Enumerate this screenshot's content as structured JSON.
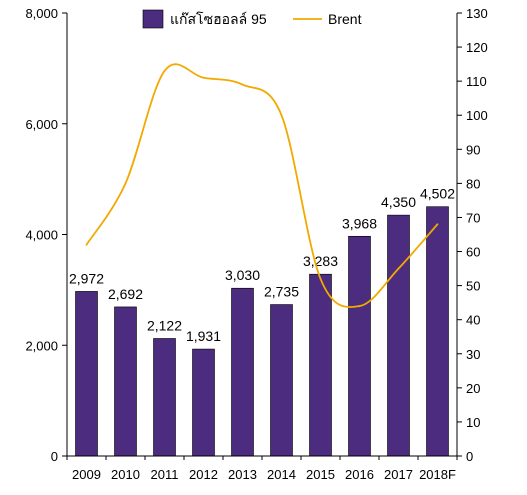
{
  "chart_data": {
    "type": "bar",
    "categories": [
      "2009",
      "2010",
      "2011",
      "2012",
      "2013",
      "2014",
      "2015",
      "2016",
      "2017",
      "2018F"
    ],
    "series": [
      {
        "name": "แก๊สโซฮอลล์ 95",
        "type": "bar",
        "axis": "left",
        "color": "#4B2C7E",
        "values": [
          2972,
          2692,
          2122,
          1931,
          3030,
          2735,
          3283,
          3968,
          4350,
          4502
        ],
        "labels": [
          "2,972",
          "2,692",
          "2,122",
          "1,931",
          "3,030",
          "2,735",
          "3,283",
          "3,968",
          "4,350",
          "4,502"
        ]
      },
      {
        "name": "Brent",
        "type": "line",
        "axis": "right",
        "color": "#F2A900",
        "smooth": true,
        "values": [
          62,
          80,
          113,
          111,
          109,
          100,
          52,
          44,
          55,
          68
        ]
      }
    ],
    "y_left": {
      "ylim": [
        0,
        8000
      ],
      "ticks": [
        0,
        2000,
        4000,
        6000,
        8000
      ],
      "tick_labels": [
        "0",
        "2,000",
        "4,000",
        "6,000",
        "8,000"
      ]
    },
    "y_right": {
      "ylim": [
        0,
        130
      ],
      "ticks": [
        0,
        10,
        20,
        30,
        40,
        50,
        60,
        70,
        80,
        90,
        100,
        110,
        120,
        130
      ],
      "tick_labels": [
        "0",
        "10",
        "20",
        "30",
        "40",
        "50",
        "60",
        "70",
        "80",
        "90",
        "100",
        "110",
        "120",
        "130"
      ]
    },
    "legend": {
      "placement": "top"
    },
    "grid": false,
    "title": "",
    "xlabel": "",
    "ylabel": ""
  }
}
